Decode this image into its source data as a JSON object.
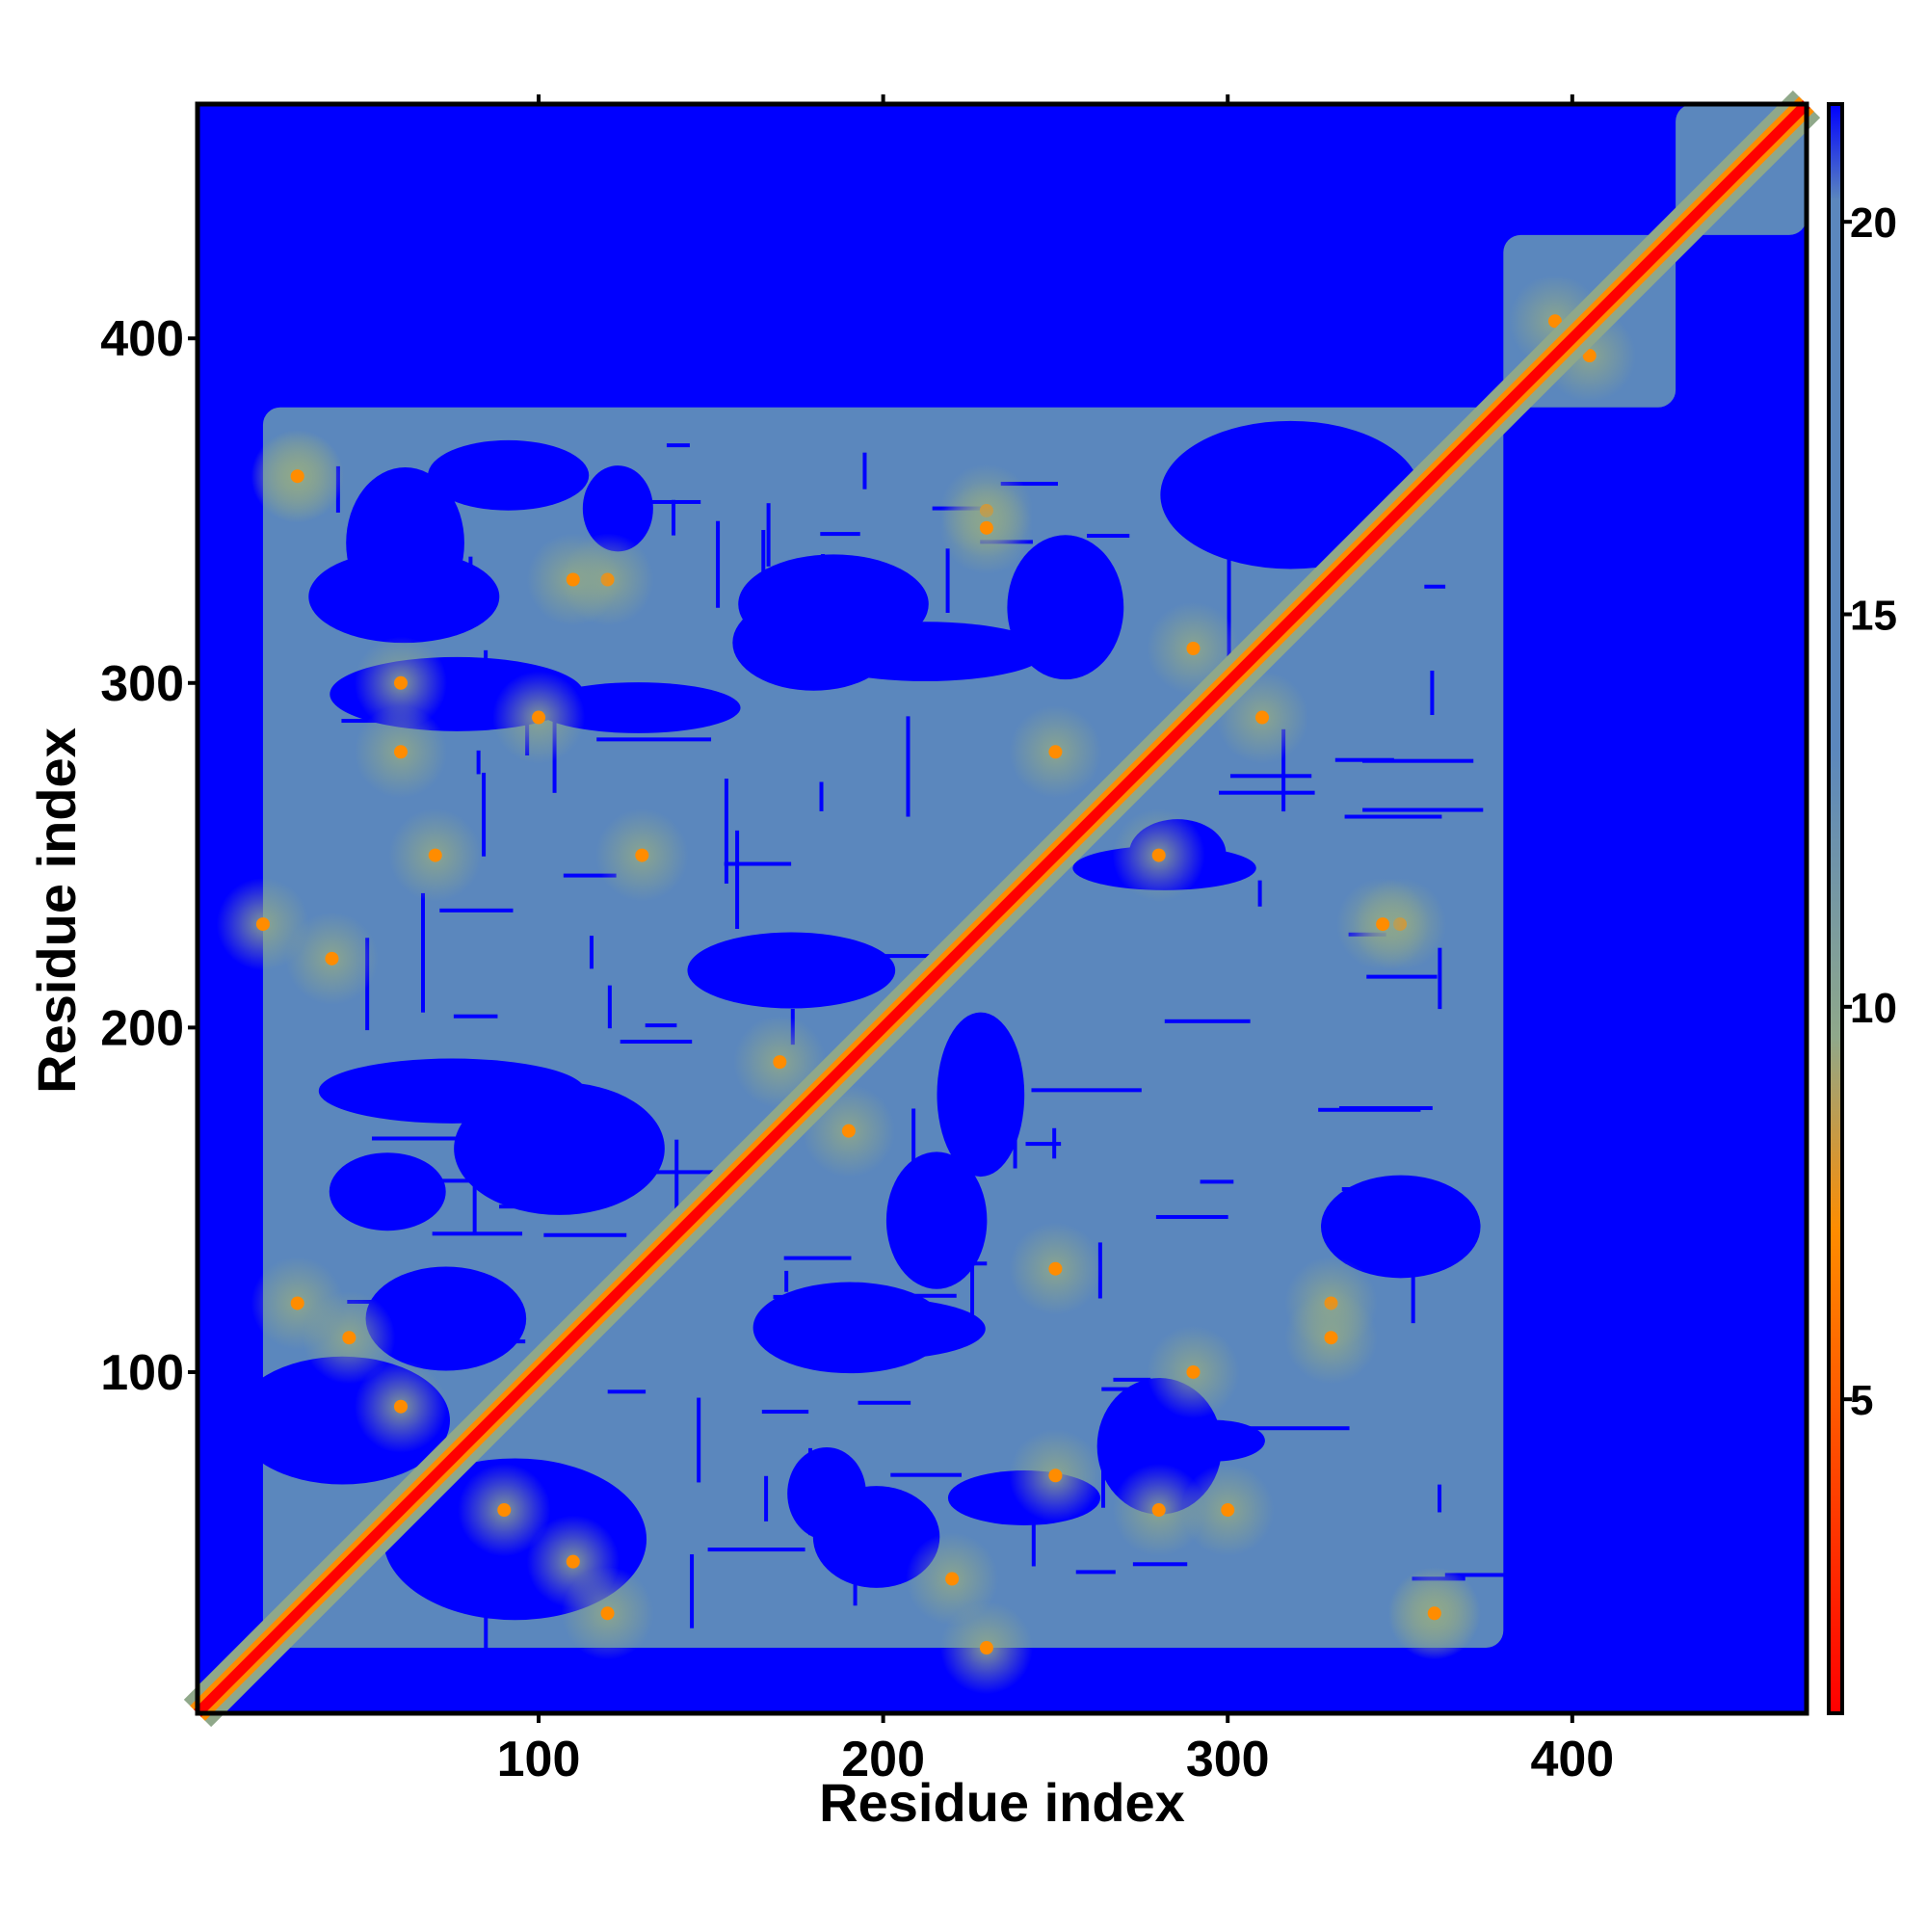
{
  "chart_data": {
    "type": "heatmap",
    "title": "",
    "xlabel": "Residue index",
    "ylabel": "Residue index",
    "xlim": [
      1,
      468
    ],
    "ylim": [
      1,
      468
    ],
    "x_ticks": [
      100,
      200,
      300,
      400
    ],
    "y_ticks": [
      100,
      200,
      300,
      400
    ],
    "colorbar": {
      "range": [
        1,
        21.5
      ],
      "ticks": [
        5,
        10,
        15,
        20
      ],
      "colors": {
        "low": "#ff0000",
        "mid_low": "#ff8c00",
        "mid": "#8fa88a",
        "high": "#5b87bd",
        "max": "#0000ff"
      }
    },
    "background_color": "#0000ff",
    "contact_region_color": "#5b87bd",
    "diagonal_color": "#ff0000",
    "structure_regions": [
      {
        "x": [
          20,
          380
        ],
        "y": [
          20,
          380
        ]
      },
      {
        "x": [
          380,
          430
        ],
        "y": [
          380,
          430
        ]
      },
      {
        "x": [
          430,
          468
        ],
        "y": [
          430,
          468
        ]
      }
    ]
  }
}
